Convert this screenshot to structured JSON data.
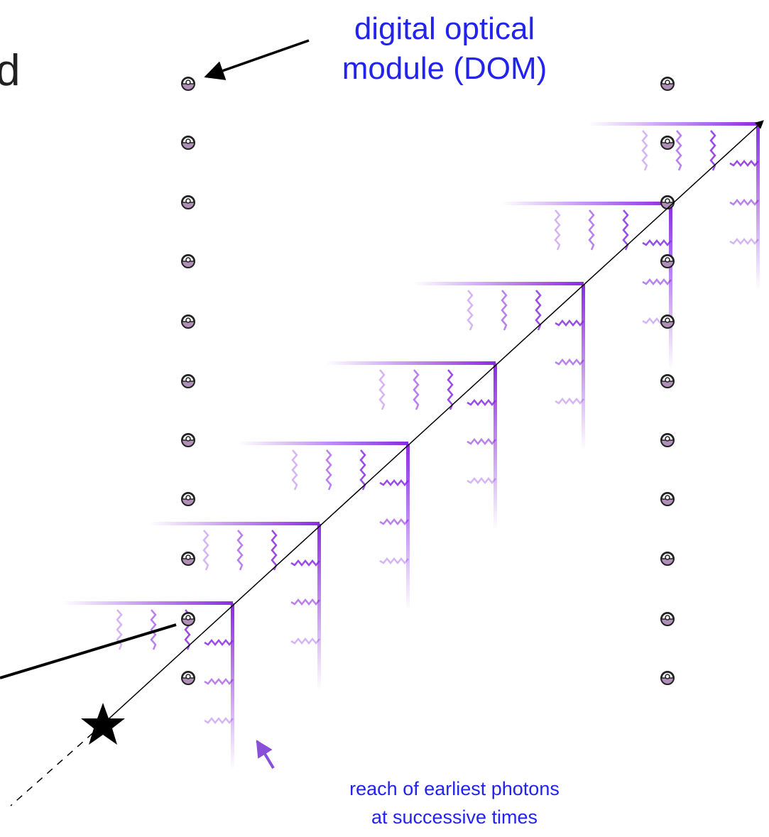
{
  "fragment": "d",
  "dom_label": {
    "lines": [
      "digital optical",
      "module (DOM)"
    ]
  },
  "caption": {
    "lines": [
      "reach of earliest photons",
      "at successive times"
    ]
  }
}
